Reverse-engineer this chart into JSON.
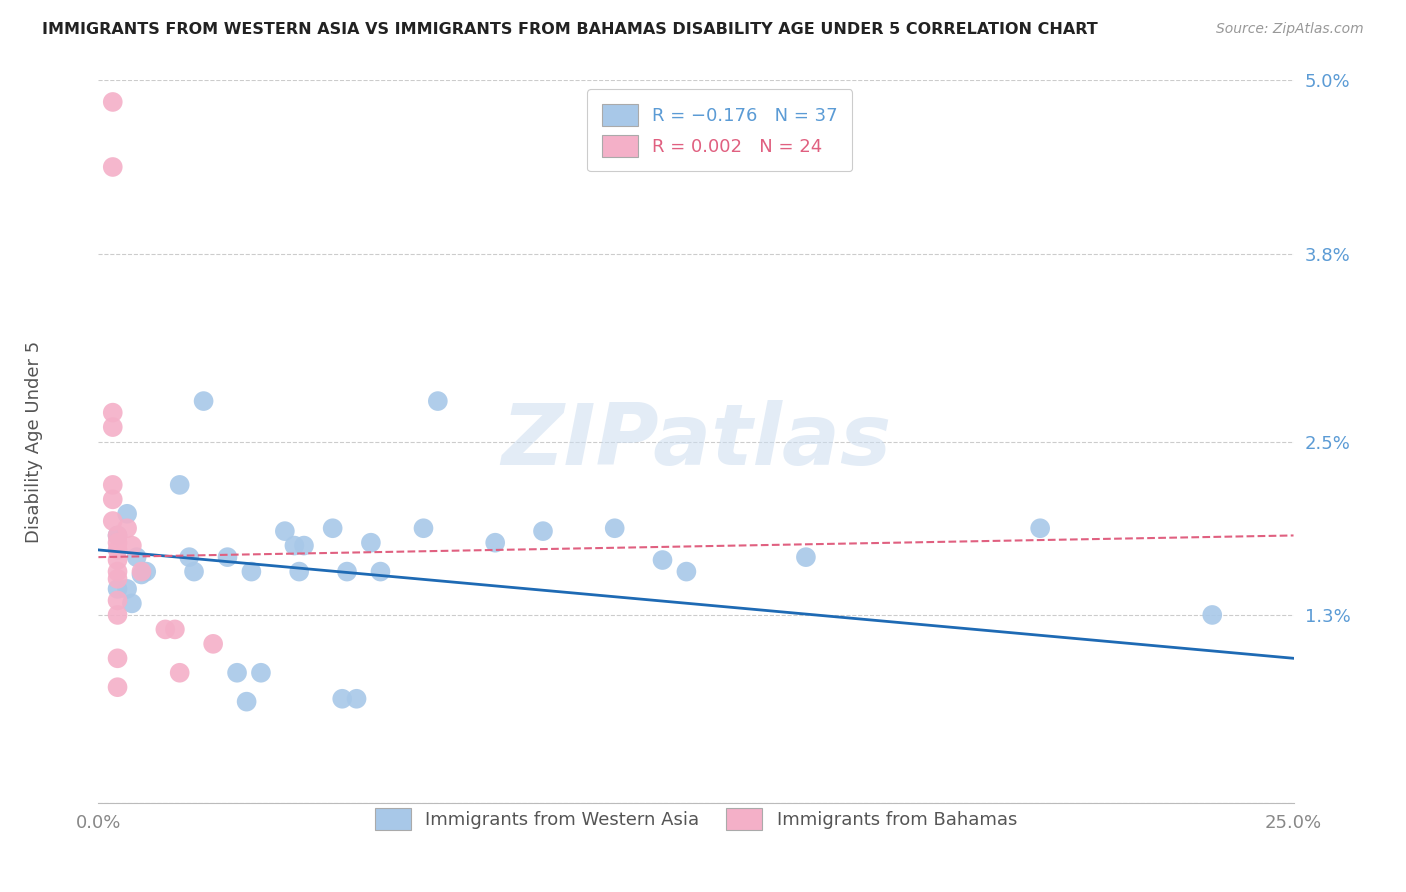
{
  "title": "IMMIGRANTS FROM WESTERN ASIA VS IMMIGRANTS FROM BAHAMAS DISABILITY AGE UNDER 5 CORRELATION CHART",
  "source": "Source: ZipAtlas.com",
  "ylabel": "Disability Age Under 5",
  "x_min": 0.0,
  "x_max": 0.25,
  "y_min": 0.0,
  "y_max": 0.05,
  "yticks": [
    0.0,
    0.013,
    0.025,
    0.038,
    0.05
  ],
  "ytick_labels": [
    "",
    "1.3%",
    "2.5%",
    "3.8%",
    "5.0%"
  ],
  "xticks": [
    0.0,
    0.05,
    0.1,
    0.15,
    0.2,
    0.25
  ],
  "xtick_labels": [
    "0.0%",
    "",
    "",
    "",
    "",
    "25.0%"
  ],
  "legend_box_colors": [
    "#a8c8e8",
    "#f4b0c8"
  ],
  "bottom_legend": [
    {
      "label": "Immigrants from Western Asia",
      "color": "#a8c8e8"
    },
    {
      "label": "Immigrants from Bahamas",
      "color": "#f4b0c8"
    }
  ],
  "blue_scatter": [
    [
      0.004,
      0.0185
    ],
    [
      0.004,
      0.0148
    ],
    [
      0.006,
      0.02
    ],
    [
      0.006,
      0.0148
    ],
    [
      0.007,
      0.0138
    ],
    [
      0.008,
      0.017
    ],
    [
      0.009,
      0.0158
    ],
    [
      0.01,
      0.016
    ],
    [
      0.017,
      0.022
    ],
    [
      0.019,
      0.017
    ],
    [
      0.02,
      0.016
    ],
    [
      0.022,
      0.0278
    ],
    [
      0.027,
      0.017
    ],
    [
      0.029,
      0.009
    ],
    [
      0.031,
      0.007
    ],
    [
      0.032,
      0.016
    ],
    [
      0.034,
      0.009
    ],
    [
      0.039,
      0.0188
    ],
    [
      0.041,
      0.0178
    ],
    [
      0.042,
      0.016
    ],
    [
      0.043,
      0.0178
    ],
    [
      0.049,
      0.019
    ],
    [
      0.051,
      0.0072
    ],
    [
      0.052,
      0.016
    ],
    [
      0.054,
      0.0072
    ],
    [
      0.057,
      0.018
    ],
    [
      0.059,
      0.016
    ],
    [
      0.068,
      0.019
    ],
    [
      0.071,
      0.0278
    ],
    [
      0.083,
      0.018
    ],
    [
      0.093,
      0.0188
    ],
    [
      0.108,
      0.019
    ],
    [
      0.118,
      0.0168
    ],
    [
      0.123,
      0.016
    ],
    [
      0.148,
      0.017
    ],
    [
      0.197,
      0.019
    ],
    [
      0.233,
      0.013
    ]
  ],
  "pink_scatter": [
    [
      0.003,
      0.0485
    ],
    [
      0.003,
      0.044
    ],
    [
      0.003,
      0.027
    ],
    [
      0.003,
      0.026
    ],
    [
      0.003,
      0.022
    ],
    [
      0.003,
      0.021
    ],
    [
      0.003,
      0.0195
    ],
    [
      0.004,
      0.0185
    ],
    [
      0.004,
      0.018
    ],
    [
      0.004,
      0.0175
    ],
    [
      0.004,
      0.0168
    ],
    [
      0.004,
      0.016
    ],
    [
      0.004,
      0.0155
    ],
    [
      0.004,
      0.014
    ],
    [
      0.004,
      0.013
    ],
    [
      0.004,
      0.01
    ],
    [
      0.004,
      0.008
    ],
    [
      0.006,
      0.019
    ],
    [
      0.007,
      0.0178
    ],
    [
      0.009,
      0.016
    ],
    [
      0.014,
      0.012
    ],
    [
      0.016,
      0.012
    ],
    [
      0.017,
      0.009
    ],
    [
      0.024,
      0.011
    ]
  ],
  "blue_line_x": [
    0.0,
    0.25
  ],
  "blue_line_y": [
    0.0175,
    0.01
  ],
  "pink_line_x": [
    0.0,
    0.25
  ],
  "pink_line_y": [
    0.017,
    0.0185
  ],
  "scatter_color_blue": "#a8c8e8",
  "scatter_color_pink": "#f4b0c8",
  "line_color_blue": "#1e6ab4",
  "line_color_pink": "#e06080",
  "grid_color": "#cccccc",
  "axis_label_color": "#5b9bd5",
  "title_color": "#222222",
  "watermark": "ZIPatlas",
  "background_color": "#ffffff"
}
